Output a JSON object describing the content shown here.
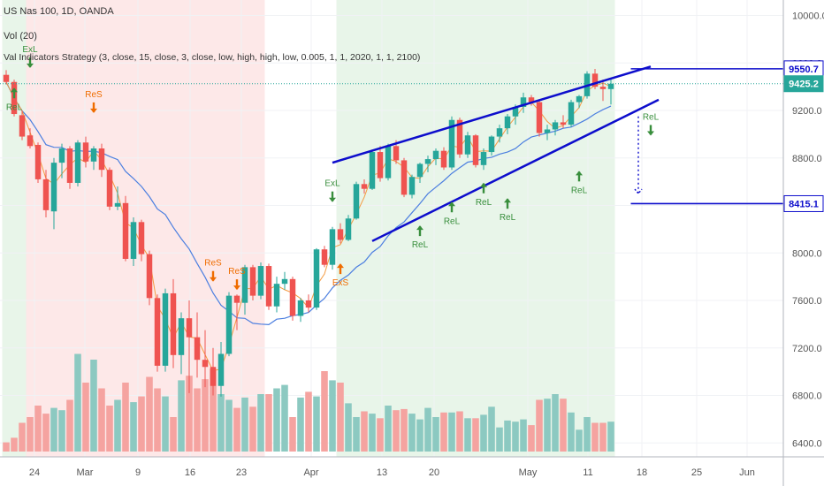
{
  "header": {
    "symbol_line": "US Nas 100, 1D, OANDA",
    "vol_line": "Vol (20)",
    "strategy_line": "Val Indicators Strategy (3, close, 15, close, 3, close, low, high, high, low, 0.005, 1, 1, 2020, 1, 1, 2100)"
  },
  "chart_data": {
    "type": "candlestick",
    "y_ticks": [
      "10000.0",
      "9600.0",
      "9200.0",
      "8800.0",
      "8400.0",
      "8000.0",
      "7600.0",
      "7200.0",
      "6800.0",
      "6400.0"
    ],
    "ylim": [
      6300,
      10150
    ],
    "x_ticks": [
      "24",
      "Mar",
      "9",
      "16",
      "23",
      "Apr",
      "13",
      "20",
      "May",
      "11",
      "18",
      "25",
      "Jun"
    ],
    "price_labels": [
      {
        "text": "9550.7",
        "value": 9550.7,
        "color": "#0d0dcc",
        "style": "outline"
      },
      {
        "text": "9425.2",
        "value": 9425.2,
        "color": "#26a69a",
        "style": "fill"
      },
      {
        "text": "8415.1",
        "value": 8415.1,
        "color": "#0d0dcc",
        "style": "outline"
      }
    ],
    "candles": [
      {
        "o": 9500,
        "h": 9540,
        "l": 9420,
        "c": 9440
      },
      {
        "o": 9440,
        "h": 9460,
        "l": 9150,
        "c": 9170
      },
      {
        "o": 9160,
        "h": 9200,
        "l": 8950,
        "c": 8980
      },
      {
        "o": 8990,
        "h": 9050,
        "l": 8880,
        "c": 8900
      },
      {
        "o": 8910,
        "h": 8930,
        "l": 8590,
        "c": 8620
      },
      {
        "o": 8620,
        "h": 8700,
        "l": 8300,
        "c": 8360
      },
      {
        "o": 8350,
        "h": 8800,
        "l": 8200,
        "c": 8760
      },
      {
        "o": 8760,
        "h": 8920,
        "l": 8630,
        "c": 8880
      },
      {
        "o": 8880,
        "h": 8900,
        "l": 8540,
        "c": 8590
      },
      {
        "o": 8590,
        "h": 8950,
        "l": 8560,
        "c": 8930
      },
      {
        "o": 8930,
        "h": 8980,
        "l": 8720,
        "c": 8770
      },
      {
        "o": 8770,
        "h": 8900,
        "l": 8700,
        "c": 8880
      },
      {
        "o": 8880,
        "h": 8920,
        "l": 8640,
        "c": 8700
      },
      {
        "o": 8700,
        "h": 8720,
        "l": 8360,
        "c": 8390
      },
      {
        "o": 8390,
        "h": 8560,
        "l": 8360,
        "c": 8420
      },
      {
        "o": 8420,
        "h": 8480,
        "l": 7930,
        "c": 7950
      },
      {
        "o": 7950,
        "h": 8300,
        "l": 7890,
        "c": 8260
      },
      {
        "o": 8260,
        "h": 8280,
        "l": 7930,
        "c": 7990
      },
      {
        "o": 7990,
        "h": 8020,
        "l": 7560,
        "c": 7620
      },
      {
        "o": 7620,
        "h": 7650,
        "l": 7000,
        "c": 7050
      },
      {
        "o": 7050,
        "h": 7700,
        "l": 7000,
        "c": 7660
      },
      {
        "o": 7660,
        "h": 7780,
        "l": 7030,
        "c": 7140
      },
      {
        "o": 7140,
        "h": 7500,
        "l": 6980,
        "c": 7450
      },
      {
        "o": 7450,
        "h": 7600,
        "l": 6820,
        "c": 7290
      },
      {
        "o": 7290,
        "h": 7500,
        "l": 6950,
        "c": 7100
      },
      {
        "o": 7100,
        "h": 7350,
        "l": 6870,
        "c": 7040
      },
      {
        "o": 7040,
        "h": 7200,
        "l": 6800,
        "c": 6880
      },
      {
        "o": 6880,
        "h": 7250,
        "l": 6790,
        "c": 7150
      },
      {
        "o": 7150,
        "h": 7670,
        "l": 7130,
        "c": 7640
      },
      {
        "o": 7640,
        "h": 7650,
        "l": 7350,
        "c": 7580
      },
      {
        "o": 7580,
        "h": 7900,
        "l": 7480,
        "c": 7880
      },
      {
        "o": 7880,
        "h": 7900,
        "l": 7600,
        "c": 7640
      },
      {
        "o": 7640,
        "h": 7920,
        "l": 7610,
        "c": 7890
      },
      {
        "o": 7890,
        "h": 7910,
        "l": 7520,
        "c": 7550
      },
      {
        "o": 7550,
        "h": 7800,
        "l": 7500,
        "c": 7740
      },
      {
        "o": 7740,
        "h": 7840,
        "l": 7690,
        "c": 7780
      },
      {
        "o": 7780,
        "h": 7800,
        "l": 7430,
        "c": 7470
      },
      {
        "o": 7470,
        "h": 7620,
        "l": 7420,
        "c": 7600
      },
      {
        "o": 7600,
        "h": 7650,
        "l": 7500,
        "c": 7540
      },
      {
        "o": 7540,
        "h": 8040,
        "l": 7520,
        "c": 8030
      },
      {
        "o": 8030,
        "h": 8060,
        "l": 7880,
        "c": 7900
      },
      {
        "o": 7900,
        "h": 8220,
        "l": 7860,
        "c": 8200
      },
      {
        "o": 8200,
        "h": 8250,
        "l": 8080,
        "c": 8110
      },
      {
        "o": 8110,
        "h": 8320,
        "l": 8100,
        "c": 8290
      },
      {
        "o": 8290,
        "h": 8600,
        "l": 8280,
        "c": 8580
      },
      {
        "o": 8580,
        "h": 8620,
        "l": 8500,
        "c": 8540
      },
      {
        "o": 8540,
        "h": 8870,
        "l": 8530,
        "c": 8850
      },
      {
        "o": 8850,
        "h": 8900,
        "l": 8600,
        "c": 8630
      },
      {
        "o": 8630,
        "h": 8920,
        "l": 8610,
        "c": 8900
      },
      {
        "o": 8900,
        "h": 8950,
        "l": 8750,
        "c": 8780
      },
      {
        "o": 8780,
        "h": 8800,
        "l": 8470,
        "c": 8490
      },
      {
        "o": 8490,
        "h": 8660,
        "l": 8460,
        "c": 8640
      },
      {
        "o": 8640,
        "h": 8760,
        "l": 8590,
        "c": 8750
      },
      {
        "o": 8750,
        "h": 8820,
        "l": 8680,
        "c": 8790
      },
      {
        "o": 8790,
        "h": 8880,
        "l": 8740,
        "c": 8860
      },
      {
        "o": 8860,
        "h": 8890,
        "l": 8700,
        "c": 8720
      },
      {
        "o": 8720,
        "h": 9150,
        "l": 8700,
        "c": 9120
      },
      {
        "o": 9120,
        "h": 9140,
        "l": 8800,
        "c": 8830
      },
      {
        "o": 8830,
        "h": 9020,
        "l": 8800,
        "c": 8990
      },
      {
        "o": 8990,
        "h": 9000,
        "l": 8720,
        "c": 8740
      },
      {
        "o": 8740,
        "h": 8880,
        "l": 8700,
        "c": 8850
      },
      {
        "o": 8850,
        "h": 8990,
        "l": 8820,
        "c": 8980
      },
      {
        "o": 8980,
        "h": 9080,
        "l": 8930,
        "c": 9050
      },
      {
        "o": 9050,
        "h": 9170,
        "l": 9000,
        "c": 9150
      },
      {
        "o": 9150,
        "h": 9250,
        "l": 9080,
        "c": 9230
      },
      {
        "o": 9230,
        "h": 9350,
        "l": 9180,
        "c": 9310
      },
      {
        "o": 9310,
        "h": 9330,
        "l": 9240,
        "c": 9270
      },
      {
        "o": 9270,
        "h": 9290,
        "l": 8980,
        "c": 9010
      },
      {
        "o": 9010,
        "h": 9080,
        "l": 8950,
        "c": 9040
      },
      {
        "o": 9040,
        "h": 9120,
        "l": 8990,
        "c": 9100
      },
      {
        "o": 9100,
        "h": 9160,
        "l": 9050,
        "c": 9080
      },
      {
        "o": 9080,
        "h": 9290,
        "l": 9060,
        "c": 9270
      },
      {
        "o": 9270,
        "h": 9330,
        "l": 9220,
        "c": 9320
      },
      {
        "o": 9320,
        "h": 9530,
        "l": 9300,
        "c": 9510
      },
      {
        "o": 9510,
        "h": 9550,
        "l": 9380,
        "c": 9400
      },
      {
        "o": 9400,
        "h": 9460,
        "l": 9280,
        "c": 9380
      },
      {
        "o": 9380,
        "h": 9470,
        "l": 9250,
        "c": 9425
      }
    ],
    "volume_ratios": [
      0.08,
      0.12,
      0.25,
      0.3,
      0.4,
      0.33,
      0.38,
      0.36,
      0.45,
      0.85,
      0.6,
      0.8,
      0.55,
      0.4,
      0.45,
      0.6,
      0.43,
      0.48,
      0.65,
      0.55,
      0.48,
      0.3,
      0.62,
      0.66,
      0.55,
      0.63,
      0.72,
      0.5,
      0.45,
      0.38,
      0.47,
      0.39,
      0.5,
      0.5,
      0.55,
      0.58,
      0.3,
      0.47,
      0.52,
      0.48,
      0.7,
      0.62,
      0.6,
      0.42,
      0.3,
      0.35,
      0.33,
      0.29,
      0.4,
      0.36,
      0.37,
      0.33,
      0.28,
      0.38,
      0.3,
      0.34,
      0.34,
      0.35,
      0.29,
      0.29,
      0.32,
      0.39,
      0.21,
      0.27,
      0.26,
      0.28,
      0.23,
      0.45,
      0.46,
      0.5,
      0.46,
      0.34,
      0.19,
      0.3,
      0.25,
      0.25,
      0.26
    ],
    "background_zones": [
      {
        "from": 0,
        "to": 2,
        "signal": "long"
      },
      {
        "from": 3,
        "to": 32,
        "signal": "short"
      },
      {
        "from": 42,
        "to": 76,
        "signal": "long"
      }
    ],
    "channel_lines": [
      {
        "name": "upper-trendline",
        "from": {
          "i": 41,
          "v": 8760
        },
        "to": {
          "i": 81,
          "v": 9570
        }
      },
      {
        "name": "lower-trendline",
        "from": {
          "i": 46,
          "v": 8100
        },
        "to": {
          "i": 82,
          "v": 9290
        }
      }
    ],
    "targets": [
      {
        "value": 9550.7,
        "from_i": 78.5
      },
      {
        "value": 8415.1,
        "from_i": 78.5
      }
    ],
    "projection": {
      "i": 79,
      "from": 9150,
      "to": 8500
    },
    "signals": [
      {
        "text": "ReL",
        "i": 1,
        "value": 9280,
        "dir": "up",
        "pos": "below",
        "color": "#388e3c"
      },
      {
        "text": "ExL",
        "i": 3,
        "value": 9670,
        "dir": "down",
        "pos": "above",
        "color": "#388e3c"
      },
      {
        "text": "ReS",
        "i": 11,
        "value": 9290,
        "dir": "down",
        "pos": "above",
        "color": "#ef6c00"
      },
      {
        "text": "ReS",
        "i": 26,
        "value": 7870,
        "dir": "down",
        "pos": "above",
        "color": "#ef6c00"
      },
      {
        "text": "ReS",
        "i": 29,
        "value": 7800,
        "dir": "down",
        "pos": "above",
        "color": "#ef6c00"
      },
      {
        "text": "ExL",
        "i": 41,
        "value": 8540,
        "dir": "down",
        "pos": "above",
        "color": "#388e3c"
      },
      {
        "text": "ExS",
        "i": 42,
        "value": 7800,
        "dir": "up",
        "pos": "below",
        "color": "#ef6c00"
      },
      {
        "text": "ReL",
        "i": 52,
        "value": 8120,
        "dir": "up",
        "pos": "below",
        "color": "#388e3c"
      },
      {
        "text": "ReL",
        "i": 56,
        "value": 8320,
        "dir": "up",
        "pos": "below",
        "color": "#388e3c"
      },
      {
        "text": "ReL",
        "i": 60,
        "value": 8480,
        "dir": "up",
        "pos": "below",
        "color": "#388e3c"
      },
      {
        "text": "ReL",
        "i": 63,
        "value": 8350,
        "dir": "up",
        "pos": "below",
        "color": "#388e3c"
      },
      {
        "text": "ReL",
        "i": 72,
        "value": 8580,
        "dir": "up",
        "pos": "below",
        "color": "#388e3c"
      },
      {
        "text": "ReL",
        "i": 81,
        "value": 9100,
        "dir": "down",
        "pos": "above",
        "color": "#388e3c"
      }
    ],
    "colors": {
      "bull": "#26a69a",
      "bear": "#ef5350",
      "vol_bull": "#8cc9c1",
      "vol_bear": "#f5a3a0",
      "zone_long": "#e8f5e9",
      "zone_short": "#fde8e8",
      "trendline": "#0d0dcc",
      "slow_ma": "#4c7fe0",
      "fast_ma": "#f59b42",
      "last_price_line": "#26a69a"
    }
  }
}
